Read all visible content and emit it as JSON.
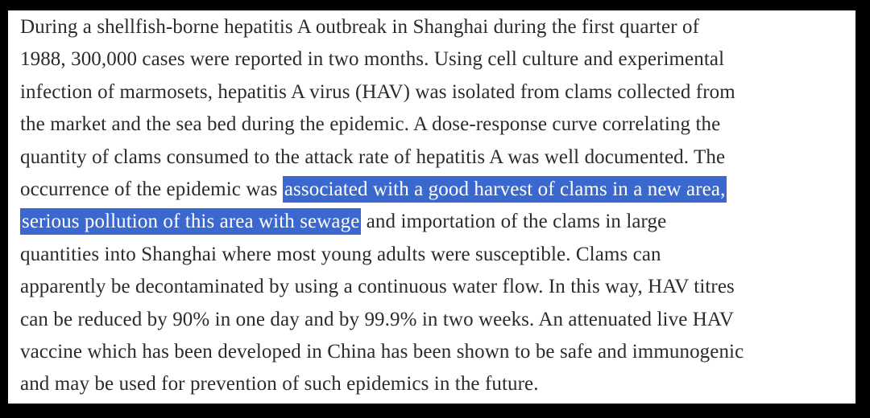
{
  "page": {
    "frame_color": "#000000",
    "background_color": "#ffffff",
    "text_color": "#2b2b2b",
    "highlight_color": "#3a68cf",
    "highlight_text_color": "#ffffff"
  },
  "abstract": {
    "highlighted_text": "associated with a good harvest of clams in a new area, serious pollution of this area with sewage",
    "lines": [
      {
        "segments": [
          {
            "text": "During a shellfish-borne hepatitis A outbreak in Shanghai during the first quarter of",
            "highlight": false
          }
        ]
      },
      {
        "segments": [
          {
            "text": "1988, 300,000 cases were reported in two months. Using cell culture and experimental",
            "highlight": false
          }
        ]
      },
      {
        "segments": [
          {
            "text": "infection of marmosets, hepatitis A virus (HAV) was isolated from clams collected from",
            "highlight": false
          }
        ]
      },
      {
        "segments": [
          {
            "text": "the market and the sea bed during the epidemic. A dose-response curve correlating the",
            "highlight": false
          }
        ]
      },
      {
        "segments": [
          {
            "text": "quantity of clams consumed to the attack rate of hepatitis A was well documented. The",
            "highlight": false
          }
        ]
      },
      {
        "segments": [
          {
            "text": "occurrence of the epidemic was ",
            "highlight": false
          },
          {
            "text": "associated with a good harvest of clams in a new area,",
            "highlight": true
          }
        ]
      },
      {
        "segments": [
          {
            "text": "serious pollution of this area with sewage",
            "highlight": true
          },
          {
            "text": " and importation of the clams in large",
            "highlight": false
          }
        ]
      },
      {
        "segments": [
          {
            "text": "quantities into Shanghai where most young adults were susceptible. Clams can",
            "highlight": false
          }
        ]
      },
      {
        "segments": [
          {
            "text": "apparently be decontaminated by using a continuous water flow. In this way, HAV titres",
            "highlight": false
          }
        ]
      },
      {
        "segments": [
          {
            "text": "can be reduced by 90% in one day and by 99.9% in two weeks. An attenuated live HAV",
            "highlight": false
          }
        ]
      },
      {
        "segments": [
          {
            "text": "vaccine which has been developed in China has been shown to be safe and immunogenic",
            "highlight": false
          }
        ]
      },
      {
        "segments": [
          {
            "text": "and may be used for prevention of such epidemics in the future.",
            "highlight": false
          }
        ]
      }
    ]
  }
}
